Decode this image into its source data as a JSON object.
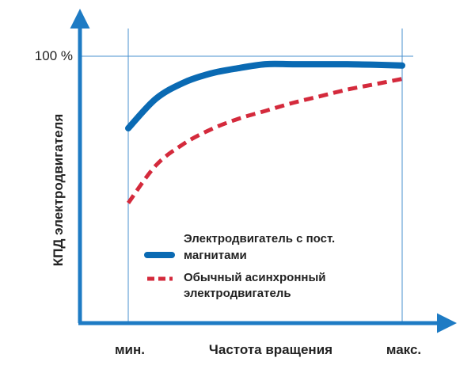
{
  "chart_data": {
    "type": "line",
    "xlabel": "Частота вращения",
    "ylabel": "КПД электродвигателя",
    "x_ticks": [
      "мин.",
      "макс."
    ],
    "y_ticks": [
      "100 %"
    ],
    "x": [
      0,
      0.1,
      0.2,
      0.3,
      0.4,
      0.5,
      0.6,
      0.7,
      0.8,
      0.9,
      1.0
    ],
    "series": [
      {
        "name": "Электродвигатель с пост. магнитами",
        "values": [
          73,
          84,
          90,
          93.5,
          95.5,
          97,
          97,
          97,
          97,
          96.8,
          96.5
        ]
      },
      {
        "name": "Обычный асинхронный электродвигатель",
        "values": [
          45,
          59,
          67,
          72.5,
          76.5,
          79.5,
          82.5,
          85,
          87.5,
          89.5,
          91.5
        ]
      }
    ],
    "legend": {
      "position": "bottom-right",
      "items": [
        {
          "line1": "Электродвигатель с пост.",
          "line2": "магнитами"
        },
        {
          "line1": "Обычный асинхронный",
          "line2": "электродвигатель"
        }
      ]
    },
    "grid": false,
    "colors": {
      "axis": "#1e7bc4",
      "guide": "#4a90cf",
      "series1": "#0a6ab3",
      "series2": "#d42a3c"
    }
  }
}
